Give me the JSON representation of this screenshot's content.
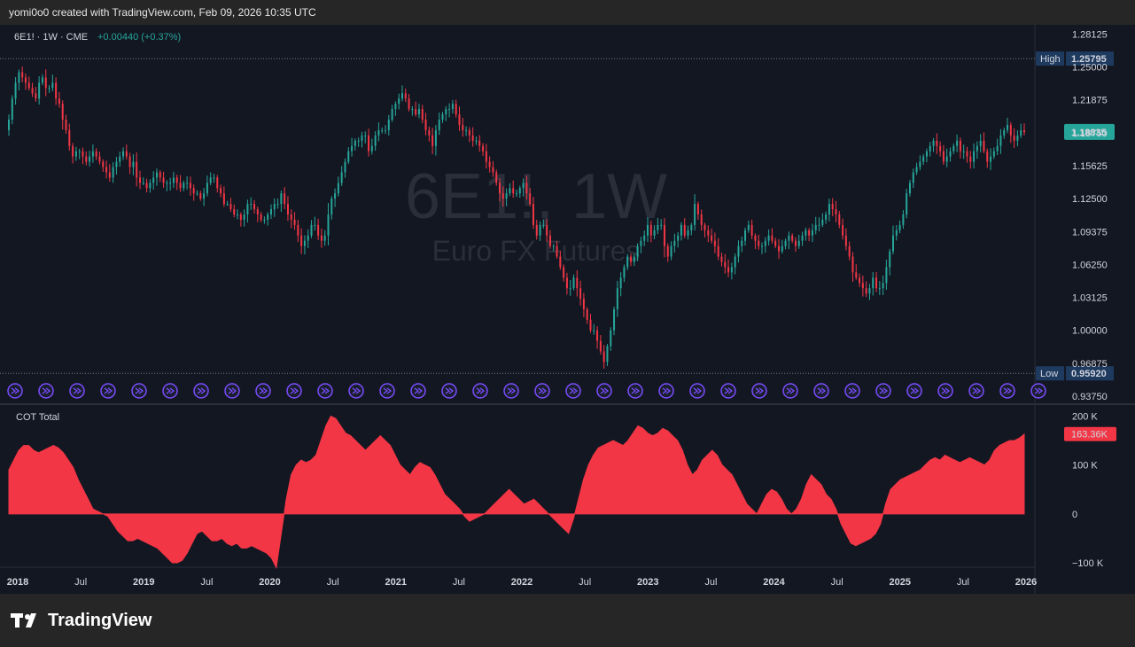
{
  "header": {
    "created_by": "yomi0o0 created with TradingView.com, Feb 09, 2026 10:35 UTC"
  },
  "legend": {
    "symbol": "6E1! · 1W · CME",
    "change": "+0.00440 (+0.37%)"
  },
  "watermark": {
    "symbol": "6E1!, 1W",
    "description": "Euro FX Futures"
  },
  "cot_panel": {
    "title": "COT Total"
  },
  "branding": {
    "name": "TradingView"
  },
  "colors": {
    "background": "#131722",
    "up": "#26a69a",
    "down": "#f23645",
    "cot_fill": "#f23645",
    "high_low_label": "#1e3a5f",
    "last_price_label": "#26a69a",
    "event_marker": "#7b4cff"
  },
  "chart_data": [
    {
      "type": "candlestick",
      "title": "6E1! · 1W · CME",
      "y_ticks": [
        "1.28125",
        "1.25000",
        "1.21875",
        "1.18750",
        "1.15625",
        "1.12500",
        "1.09375",
        "1.06250",
        "1.03125",
        "1.00000",
        "0.96875",
        "0.93750"
      ],
      "ylim": [
        0.935,
        1.29
      ],
      "x_ticks": [
        "2018",
        "Jul",
        "2019",
        "Jul",
        "2020",
        "Jul",
        "2021",
        "Jul",
        "2022",
        "Jul",
        "2023",
        "Jul",
        "2024",
        "Jul",
        "2025",
        "Jul",
        "2026"
      ],
      "high": {
        "label": "High",
        "value": "1.25795"
      },
      "low": {
        "label": "Low",
        "value": "0.95920"
      },
      "last_price": "1.18835",
      "approx_weekly_closes": [
        1.2,
        1.22,
        1.235,
        1.245,
        1.24,
        1.235,
        1.23,
        1.225,
        1.22,
        1.235,
        1.24,
        1.23,
        1.23,
        1.235,
        1.22,
        1.215,
        1.2,
        1.19,
        1.175,
        1.165,
        1.17,
        1.17,
        1.165,
        1.16,
        1.165,
        1.17,
        1.165,
        1.16,
        1.155,
        1.15,
        1.145,
        1.155,
        1.16,
        1.165,
        1.17,
        1.165,
        1.155,
        1.16,
        1.145,
        1.14,
        1.14,
        1.135,
        1.14,
        1.145,
        1.15,
        1.145,
        1.14,
        1.14,
        1.14,
        1.145,
        1.14,
        1.135,
        1.14,
        1.14,
        1.135,
        1.13,
        1.13,
        1.125,
        1.13,
        1.14,
        1.145,
        1.145,
        1.135,
        1.13,
        1.12,
        1.12,
        1.115,
        1.11,
        1.11,
        1.105,
        1.11,
        1.12,
        1.12,
        1.115,
        1.11,
        1.105,
        1.105,
        1.11,
        1.115,
        1.12,
        1.12,
        1.13,
        1.12,
        1.11,
        1.105,
        1.1,
        1.09,
        1.08,
        1.085,
        1.09,
        1.1,
        1.1,
        1.09,
        1.085,
        1.09,
        1.11,
        1.125,
        1.13,
        1.14,
        1.15,
        1.16,
        1.17,
        1.175,
        1.18,
        1.18,
        1.185,
        1.185,
        1.17,
        1.175,
        1.185,
        1.19,
        1.19,
        1.19,
        1.2,
        1.21,
        1.215,
        1.22,
        1.225,
        1.22,
        1.21,
        1.21,
        1.205,
        1.21,
        1.2,
        1.19,
        1.185,
        1.175,
        1.19,
        1.2,
        1.205,
        1.21,
        1.21,
        1.215,
        1.205,
        1.195,
        1.19,
        1.19,
        1.185,
        1.18,
        1.18,
        1.175,
        1.17,
        1.16,
        1.155,
        1.15,
        1.14,
        1.13,
        1.125,
        1.13,
        1.135,
        1.13,
        1.13,
        1.135,
        1.14,
        1.13,
        1.12,
        1.1,
        1.09,
        1.1,
        1.1,
        1.09,
        1.08,
        1.08,
        1.07,
        1.06,
        1.05,
        1.04,
        1.04,
        1.05,
        1.04,
        1.03,
        1.02,
        1.01,
        1.0,
        1.0,
        0.99,
        0.98,
        0.97,
        0.985,
        1.0,
        1.02,
        1.04,
        1.05,
        1.06,
        1.07,
        1.065,
        1.07,
        1.08,
        1.085,
        1.09,
        1.1,
        1.09,
        1.095,
        1.1,
        1.1,
        1.08,
        1.07,
        1.08,
        1.085,
        1.09,
        1.1,
        1.09,
        1.095,
        1.1,
        1.12,
        1.11,
        1.1,
        1.095,
        1.09,
        1.085,
        1.08,
        1.07,
        1.065,
        1.06,
        1.055,
        1.06,
        1.07,
        1.08,
        1.085,
        1.095,
        1.1,
        1.09,
        1.085,
        1.08,
        1.08,
        1.085,
        1.09,
        1.085,
        1.08,
        1.075,
        1.08,
        1.085,
        1.09,
        1.085,
        1.08,
        1.085,
        1.09,
        1.095,
        1.09,
        1.095,
        1.1,
        1.1,
        1.105,
        1.11,
        1.12,
        1.115,
        1.11,
        1.1,
        1.09,
        1.08,
        1.07,
        1.055,
        1.05,
        1.045,
        1.04,
        1.035,
        1.04,
        1.05,
        1.04,
        1.04,
        1.045,
        1.06,
        1.075,
        1.09,
        1.095,
        1.1,
        1.11,
        1.13,
        1.14,
        1.15,
        1.155,
        1.16,
        1.165,
        1.17,
        1.175,
        1.18,
        1.175,
        1.17,
        1.16,
        1.165,
        1.17,
        1.175,
        1.18,
        1.17,
        1.17,
        1.165,
        1.16,
        1.17,
        1.175,
        1.18,
        1.17,
        1.16,
        1.165,
        1.17,
        1.175,
        1.185,
        1.19,
        1.195,
        1.185,
        1.18,
        1.185,
        1.19,
        1.188
      ]
    },
    {
      "type": "area",
      "title": "COT Total",
      "y_ticks": [
        "200 K",
        "100 K",
        "0",
        "−100 K"
      ],
      "ylim": [
        -120,
        210
      ],
      "last_value": "163.36K",
      "approx_weekly_values_k": [
        90,
        110,
        130,
        140,
        140,
        130,
        125,
        130,
        135,
        140,
        135,
        125,
        110,
        95,
        70,
        50,
        30,
        10,
        5,
        0,
        -5,
        -20,
        -35,
        -45,
        -55,
        -55,
        -50,
        -55,
        -60,
        -65,
        -70,
        -80,
        -90,
        -100,
        -100,
        -95,
        -80,
        -60,
        -40,
        -35,
        -45,
        -55,
        -55,
        -50,
        -60,
        -65,
        -60,
        -70,
        -70,
        -65,
        -70,
        -75,
        -80,
        -90,
        -110,
        -40,
        30,
        80,
        100,
        110,
        105,
        110,
        120,
        150,
        180,
        200,
        195,
        180,
        165,
        160,
        150,
        140,
        130,
        140,
        150,
        160,
        150,
        140,
        120,
        100,
        90,
        80,
        95,
        105,
        100,
        95,
        80,
        60,
        40,
        30,
        20,
        10,
        -5,
        -15,
        -10,
        -5,
        0,
        10,
        20,
        30,
        40,
        50,
        40,
        30,
        20,
        25,
        30,
        20,
        10,
        0,
        -10,
        -20,
        -30,
        -40,
        -10,
        30,
        70,
        100,
        120,
        135,
        140,
        145,
        150,
        145,
        140,
        150,
        165,
        180,
        175,
        165,
        160,
        165,
        175,
        170,
        160,
        150,
        130,
        100,
        80,
        90,
        110,
        120,
        130,
        120,
        100,
        90,
        80,
        60,
        40,
        20,
        10,
        0,
        20,
        40,
        50,
        45,
        30,
        10,
        0,
        10,
        30,
        60,
        80,
        70,
        60,
        40,
        30,
        10,
        -20,
        -40,
        -60,
        -65,
        -60,
        -55,
        -50,
        -40,
        -20,
        20,
        50,
        60,
        70,
        75,
        80,
        85,
        90,
        100,
        110,
        115,
        110,
        120,
        115,
        110,
        105,
        110,
        115,
        110,
        105,
        100,
        110,
        130,
        140,
        145,
        150,
        150,
        155,
        163
      ]
    }
  ]
}
